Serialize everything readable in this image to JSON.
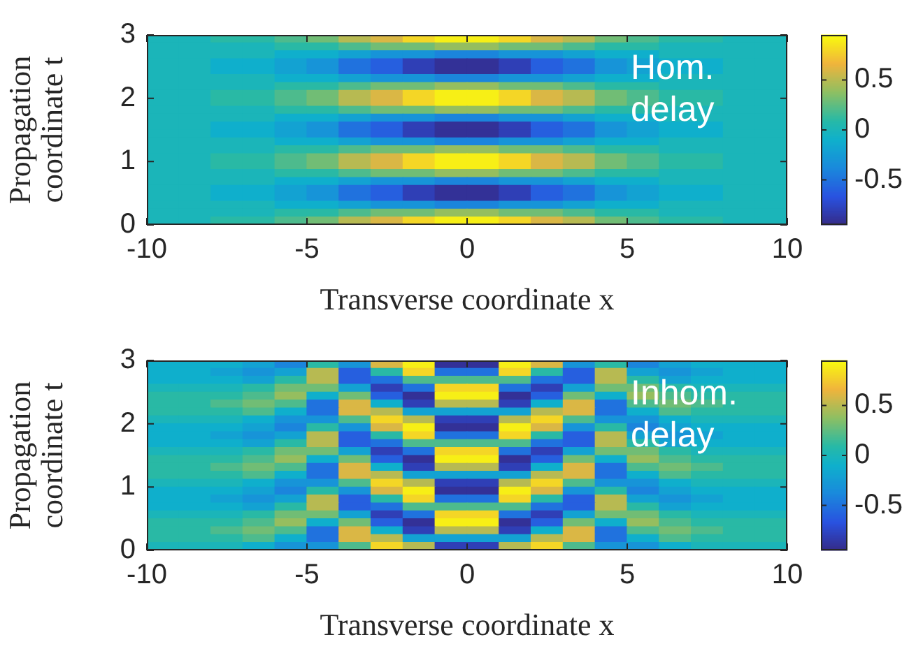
{
  "chart_data": [
    {
      "type": "heatmap",
      "xlabel": "Transverse coordinate x",
      "ylabel": "Propagation coordinate t",
      "annotations": [
        "Hom. delay"
      ],
      "x": [
        -9.5,
        -8.5,
        -7.5,
        -6.5,
        -5.5,
        -4.5,
        -3.5,
        -2.5,
        -1.5,
        -0.5,
        0.5,
        1.5,
        2.5,
        3.5,
        4.5,
        5.5,
        6.5,
        7.5,
        8.5,
        9.5
      ],
      "y": [
        2.9375,
        2.8125,
        2.6875,
        2.5625,
        2.4375,
        2.3125,
        2.1875,
        2.0625,
        1.9375,
        1.8125,
        1.6875,
        1.5625,
        1.4375,
        1.3125,
        1.1875,
        1.0625,
        0.9375,
        0.8125,
        0.6875,
        0.5625,
        0.4375,
        0.3125,
        0.1875,
        0.0625
      ],
      "cells": [
        [
          0,
          0,
          0.1,
          0.1,
          0.2,
          0.3,
          0.5,
          0.6,
          0.8,
          0.9,
          0.9,
          0.8,
          0.6,
          0.5,
          0.3,
          0.2,
          0.1,
          0.1,
          0,
          0
        ],
        [
          0,
          0,
          0,
          0,
          0.1,
          0.1,
          0.2,
          0.3,
          0.3,
          0.4,
          0.4,
          0.3,
          0.3,
          0.2,
          0.1,
          0.1,
          0,
          0,
          0,
          0
        ],
        [
          0,
          0,
          0,
          0,
          -0.1,
          -0.1,
          -0.2,
          -0.3,
          -0.3,
          -0.4,
          -0.4,
          -0.3,
          -0.3,
          -0.2,
          -0.1,
          -0.1,
          0,
          0,
          0,
          0
        ],
        [
          0,
          0,
          -0.1,
          -0.1,
          -0.2,
          -0.3,
          -0.5,
          -0.6,
          -0.8,
          -0.9,
          -0.9,
          -0.8,
          -0.6,
          -0.5,
          -0.3,
          -0.2,
          -0.1,
          -0.1,
          0,
          0
        ],
        [
          0,
          0,
          -0.1,
          -0.1,
          -0.2,
          -0.3,
          -0.5,
          -0.6,
          -0.8,
          -0.9,
          -0.9,
          -0.8,
          -0.6,
          -0.5,
          -0.3,
          -0.2,
          -0.1,
          -0.1,
          0,
          0
        ],
        [
          0,
          0,
          0,
          0,
          -0.1,
          -0.1,
          -0.2,
          -0.3,
          -0.3,
          -0.4,
          -0.4,
          -0.3,
          -0.3,
          -0.2,
          -0.1,
          -0.1,
          0,
          0,
          0,
          0
        ],
        [
          0,
          0,
          0,
          0,
          0.1,
          0.1,
          0.2,
          0.3,
          0.3,
          0.4,
          0.4,
          0.3,
          0.3,
          0.2,
          0.1,
          0.1,
          0,
          0,
          0,
          0
        ],
        [
          0,
          0,
          0.1,
          0.1,
          0.2,
          0.3,
          0.5,
          0.6,
          0.8,
          0.9,
          0.9,
          0.8,
          0.6,
          0.5,
          0.3,
          0.2,
          0.1,
          0.1,
          0,
          0
        ],
        [
          0,
          0,
          0.1,
          0.1,
          0.2,
          0.3,
          0.5,
          0.6,
          0.8,
          0.9,
          0.9,
          0.8,
          0.6,
          0.5,
          0.3,
          0.2,
          0.1,
          0.1,
          0,
          0
        ],
        [
          0,
          0,
          0,
          0,
          0.1,
          0.1,
          0.2,
          0.3,
          0.3,
          0.4,
          0.4,
          0.3,
          0.3,
          0.2,
          0.1,
          0.1,
          0,
          0,
          0,
          0
        ],
        [
          0,
          0,
          0,
          0,
          -0.1,
          -0.1,
          -0.2,
          -0.3,
          -0.3,
          -0.4,
          -0.4,
          -0.3,
          -0.3,
          -0.2,
          -0.1,
          -0.1,
          0,
          0,
          0,
          0
        ],
        [
          0,
          0,
          -0.1,
          -0.1,
          -0.2,
          -0.3,
          -0.5,
          -0.6,
          -0.8,
          -0.9,
          -0.9,
          -0.8,
          -0.6,
          -0.5,
          -0.3,
          -0.2,
          -0.1,
          -0.1,
          0,
          0
        ],
        [
          0,
          0,
          -0.1,
          -0.1,
          -0.2,
          -0.3,
          -0.5,
          -0.6,
          -0.8,
          -0.9,
          -0.9,
          -0.8,
          -0.6,
          -0.5,
          -0.3,
          -0.2,
          -0.1,
          -0.1,
          0,
          0
        ],
        [
          0,
          0,
          0,
          0,
          -0.1,
          -0.1,
          -0.2,
          -0.3,
          -0.3,
          -0.4,
          -0.4,
          -0.3,
          -0.3,
          -0.2,
          -0.1,
          -0.1,
          0,
          0,
          0,
          0
        ],
        [
          0,
          0,
          0,
          0,
          0.1,
          0.1,
          0.2,
          0.3,
          0.3,
          0.4,
          0.4,
          0.3,
          0.3,
          0.2,
          0.1,
          0.1,
          0,
          0,
          0,
          0
        ],
        [
          0,
          0,
          0.1,
          0.1,
          0.2,
          0.3,
          0.5,
          0.6,
          0.8,
          0.9,
          0.9,
          0.8,
          0.6,
          0.5,
          0.3,
          0.2,
          0.1,
          0.1,
          0,
          0
        ],
        [
          0,
          0,
          0.1,
          0.1,
          0.2,
          0.3,
          0.5,
          0.6,
          0.8,
          0.9,
          0.9,
          0.8,
          0.6,
          0.5,
          0.3,
          0.2,
          0.1,
          0.1,
          0,
          0
        ],
        [
          0,
          0,
          0,
          0,
          0.1,
          0.1,
          0.2,
          0.3,
          0.3,
          0.4,
          0.4,
          0.3,
          0.3,
          0.2,
          0.1,
          0.1,
          0,
          0,
          0,
          0
        ],
        [
          0,
          0,
          0,
          0,
          -0.1,
          -0.1,
          -0.2,
          -0.3,
          -0.3,
          -0.4,
          -0.4,
          -0.3,
          -0.3,
          -0.2,
          -0.1,
          -0.1,
          0,
          0,
          0,
          0
        ],
        [
          0,
          0,
          -0.1,
          -0.1,
          -0.2,
          -0.3,
          -0.5,
          -0.6,
          -0.8,
          -0.9,
          -0.9,
          -0.8,
          -0.6,
          -0.5,
          -0.3,
          -0.2,
          -0.1,
          -0.1,
          0,
          0
        ],
        [
          0,
          0,
          -0.1,
          -0.1,
          -0.2,
          -0.3,
          -0.5,
          -0.6,
          -0.8,
          -0.9,
          -0.9,
          -0.8,
          -0.6,
          -0.5,
          -0.3,
          -0.2,
          -0.1,
          -0.1,
          0,
          0
        ],
        [
          0,
          0,
          0,
          0,
          -0.1,
          -0.1,
          -0.2,
          -0.3,
          -0.3,
          -0.4,
          -0.4,
          -0.3,
          -0.3,
          -0.2,
          -0.1,
          -0.1,
          0,
          0,
          0,
          0
        ],
        [
          0,
          0,
          0,
          0,
          0.1,
          0.1,
          0.2,
          0.3,
          0.3,
          0.4,
          0.4,
          0.3,
          0.3,
          0.2,
          0.1,
          0.1,
          0,
          0,
          0,
          0
        ],
        [
          0,
          0,
          0.1,
          0.1,
          0.2,
          0.3,
          0.5,
          0.6,
          0.8,
          0.9,
          0.9,
          0.8,
          0.6,
          0.5,
          0.3,
          0.2,
          0.1,
          0.1,
          0,
          0
        ]
      ],
      "xlim": [
        -10,
        10
      ],
      "xticks": [
        -10,
        -5,
        0,
        5,
        10
      ],
      "ylim": [
        0,
        3
      ],
      "yticks": [
        0,
        1,
        2,
        3
      ],
      "clim": [
        -0.95,
        0.95
      ],
      "cticks": [
        -0.5,
        0,
        0.5
      ]
    },
    {
      "type": "heatmap",
      "xlabel": "Transverse coordinate x",
      "ylabel": "Propagation coordinate t",
      "annotations": [
        "Inhom. delay"
      ],
      "x": [
        -9.5,
        -8.5,
        -7.5,
        -6.5,
        -5.5,
        -4.5,
        -3.5,
        -2.5,
        -1.5,
        -0.5,
        0.5,
        1.5,
        2.5,
        3.5,
        4.5,
        5.5,
        6.5,
        7.5,
        8.5,
        9.5
      ],
      "y": [
        2.9375,
        2.8125,
        2.6875,
        2.5625,
        2.4375,
        2.3125,
        2.1875,
        2.0625,
        1.9375,
        1.8125,
        1.6875,
        1.5625,
        1.4375,
        1.3125,
        1.1875,
        1.0625,
        0.9375,
        0.8125,
        0.6875,
        0.5625,
        0.4375,
        0.3125,
        0.1875,
        0.0625
      ],
      "cells": [
        [
          -0.1,
          -0.1,
          -0.1,
          -0.2,
          -0.4,
          0.1,
          -0.3,
          0.6,
          0.9,
          -0.9,
          -0.9,
          0.9,
          0.6,
          -0.3,
          0.1,
          -0.4,
          -0.2,
          -0.1,
          -0.1,
          -0.1
        ],
        [
          -0.1,
          -0.1,
          -0.2,
          -0.3,
          -0.2,
          0.5,
          -0.6,
          0.1,
          0.8,
          -0.5,
          -0.5,
          0.8,
          0.1,
          -0.6,
          0.5,
          -0.2,
          -0.3,
          -0.2,
          -0.1,
          -0.1
        ],
        [
          -0.1,
          -0.1,
          -0.1,
          -0.2,
          0.1,
          0.5,
          -0.6,
          -0.5,
          0.2,
          0.2,
          0.2,
          0.2,
          -0.5,
          -0.6,
          0.5,
          0.1,
          -0.2,
          -0.1,
          -0.1,
          -0.1
        ],
        [
          0,
          0,
          0,
          0.1,
          0.3,
          0.3,
          -0.2,
          -0.8,
          -0.5,
          0.8,
          0.8,
          -0.5,
          -0.8,
          -0.2,
          0.3,
          0.3,
          0.1,
          0,
          0,
          0
        ],
        [
          0.1,
          0.1,
          0.1,
          0.2,
          0.4,
          -0.1,
          0.3,
          -0.6,
          -0.9,
          0.9,
          0.9,
          -0.9,
          -0.6,
          0.3,
          -0.1,
          0.4,
          0.2,
          0.1,
          0.1,
          0.1
        ],
        [
          0.1,
          0.1,
          0.2,
          0.3,
          0.2,
          -0.5,
          0.6,
          -0.1,
          -0.8,
          0.5,
          0.5,
          -0.8,
          -0.1,
          0.6,
          -0.5,
          0.2,
          0.3,
          0.2,
          0.1,
          0.1
        ],
        [
          0.1,
          0.1,
          0.1,
          0.2,
          -0.1,
          -0.5,
          0.6,
          0.5,
          -0.2,
          -0.2,
          -0.2,
          -0.2,
          0.5,
          0.6,
          -0.5,
          -0.1,
          0.2,
          0.1,
          0.1,
          0.1
        ],
        [
          0,
          0,
          0,
          -0.1,
          -0.3,
          -0.3,
          0.2,
          0.8,
          0.5,
          -0.8,
          -0.8,
          0.5,
          0.8,
          0.2,
          -0.3,
          -0.3,
          -0.1,
          0,
          0,
          0
        ],
        [
          -0.1,
          -0.1,
          -0.1,
          -0.2,
          -0.4,
          0.1,
          -0.3,
          0.6,
          0.9,
          -0.9,
          -0.9,
          0.9,
          0.6,
          -0.3,
          0.1,
          -0.4,
          -0.2,
          -0.1,
          -0.1,
          -0.1
        ],
        [
          -0.1,
          -0.1,
          -0.2,
          -0.3,
          -0.2,
          0.5,
          -0.6,
          0.1,
          0.8,
          -0.5,
          -0.5,
          0.8,
          0.1,
          -0.6,
          0.5,
          -0.2,
          -0.3,
          -0.2,
          -0.1,
          -0.1
        ],
        [
          -0.1,
          -0.1,
          -0.1,
          -0.2,
          0.1,
          0.5,
          -0.6,
          -0.5,
          0.2,
          0.2,
          0.2,
          0.2,
          -0.5,
          -0.6,
          0.5,
          0.1,
          -0.2,
          -0.1,
          -0.1,
          -0.1
        ],
        [
          0,
          0,
          0,
          0.1,
          0.3,
          0.3,
          -0.2,
          -0.8,
          -0.5,
          0.8,
          0.8,
          -0.5,
          -0.8,
          -0.2,
          0.3,
          0.3,
          0.1,
          0,
          0,
          0
        ],
        [
          0.1,
          0.1,
          0.1,
          0.2,
          0.4,
          -0.1,
          0.3,
          -0.6,
          -0.9,
          0.9,
          0.9,
          -0.9,
          -0.6,
          0.3,
          -0.1,
          0.4,
          0.2,
          0.1,
          0.1,
          0.1
        ],
        [
          0.1,
          0.1,
          0.2,
          0.3,
          0.2,
          -0.5,
          0.6,
          -0.1,
          -0.8,
          0.5,
          0.5,
          -0.8,
          -0.1,
          0.6,
          -0.5,
          0.2,
          0.3,
          0.2,
          0.1,
          0.1
        ],
        [
          0.1,
          0.1,
          0.1,
          0.2,
          -0.1,
          -0.5,
          0.6,
          0.5,
          -0.2,
          -0.2,
          -0.2,
          -0.2,
          0.5,
          0.6,
          -0.5,
          -0.1,
          0.2,
          0.1,
          0.1,
          0.1
        ],
        [
          0,
          0,
          0,
          -0.1,
          -0.3,
          -0.3,
          0.2,
          0.8,
          0.5,
          -0.8,
          -0.8,
          0.5,
          0.8,
          0.2,
          -0.3,
          -0.3,
          -0.1,
          0,
          0,
          0
        ],
        [
          -0.1,
          -0.1,
          -0.1,
          -0.2,
          -0.4,
          0.1,
          -0.3,
          0.6,
          0.9,
          -0.9,
          -0.9,
          0.9,
          0.6,
          -0.3,
          0.1,
          -0.4,
          -0.2,
          -0.1,
          -0.1,
          -0.1
        ],
        [
          -0.1,
          -0.1,
          -0.2,
          -0.3,
          -0.2,
          0.5,
          -0.6,
          0.1,
          0.8,
          -0.5,
          -0.5,
          0.8,
          0.1,
          -0.6,
          0.5,
          -0.2,
          -0.3,
          -0.2,
          -0.1,
          -0.1
        ],
        [
          -0.1,
          -0.1,
          -0.1,
          -0.2,
          0.1,
          0.5,
          -0.6,
          -0.5,
          0.2,
          0.2,
          0.2,
          0.2,
          -0.5,
          -0.6,
          0.5,
          0.1,
          -0.2,
          -0.1,
          -0.1,
          -0.1
        ],
        [
          0,
          0,
          0,
          0.1,
          0.3,
          0.3,
          -0.2,
          -0.8,
          -0.5,
          0.8,
          0.8,
          -0.5,
          -0.8,
          -0.2,
          0.3,
          0.3,
          0.1,
          0,
          0,
          0
        ],
        [
          0.1,
          0.1,
          0.1,
          0.2,
          0.4,
          -0.1,
          0.3,
          -0.6,
          -0.9,
          0.9,
          0.9,
          -0.9,
          -0.6,
          0.3,
          -0.1,
          0.4,
          0.2,
          0.1,
          0.1,
          0.1
        ],
        [
          0.1,
          0.1,
          0.2,
          0.3,
          0.2,
          -0.5,
          0.6,
          -0.1,
          -0.8,
          0.5,
          0.5,
          -0.8,
          -0.1,
          0.6,
          -0.5,
          0.2,
          0.3,
          0.2,
          0.1,
          0.1
        ],
        [
          0.1,
          0.1,
          0.1,
          0.2,
          -0.1,
          -0.5,
          0.6,
          0.5,
          -0.2,
          -0.2,
          -0.2,
          -0.2,
          0.5,
          0.6,
          -0.5,
          -0.1,
          0.2,
          0.1,
          0.1,
          0.1
        ],
        [
          0,
          0,
          0,
          -0.1,
          -0.3,
          -0.3,
          0.2,
          0.8,
          0.5,
          -0.8,
          -0.8,
          0.5,
          0.8,
          0.2,
          -0.3,
          -0.3,
          -0.1,
          0,
          0,
          0
        ]
      ],
      "xlim": [
        -10,
        10
      ],
      "xticks": [
        -10,
        -5,
        0,
        5,
        10
      ],
      "ylim": [
        0,
        3
      ],
      "yticks": [
        0,
        1,
        2,
        3
      ],
      "clim": [
        -0.95,
        0.95
      ],
      "cticks": [
        -0.5,
        0,
        0.5
      ]
    }
  ]
}
